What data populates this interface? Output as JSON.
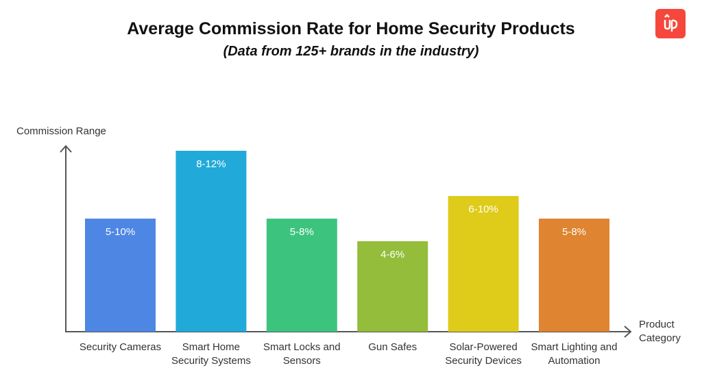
{
  "chart_data": {
    "type": "bar",
    "title": "Average Commission Rate for Home Security Products",
    "subtitle": "(Data from 125+ brands in the industry)",
    "ylabel": "Commission Range",
    "xlabel": "Product Category",
    "categories": [
      "Security Cameras",
      "Smart Home Security Systems",
      "Smart Locks and Sensors",
      "Gun Safes",
      "Solar-Powered Security Devices",
      "Smart Lighting and Automation"
    ],
    "data_labels": [
      "5-10%",
      "8-12%",
      "5-8%",
      "4-6%",
      "6-10%",
      "5-8%"
    ],
    "values": [
      5,
      8,
      5,
      4,
      6,
      5
    ],
    "colors": [
      "#4e86e4",
      "#21aad9",
      "#3cc47f",
      "#93bd3b",
      "#dfcb19",
      "#df8430"
    ],
    "grid": false,
    "y_ticks": false
  },
  "logo": {
    "name": "up-logo",
    "color": "#f5473b"
  }
}
